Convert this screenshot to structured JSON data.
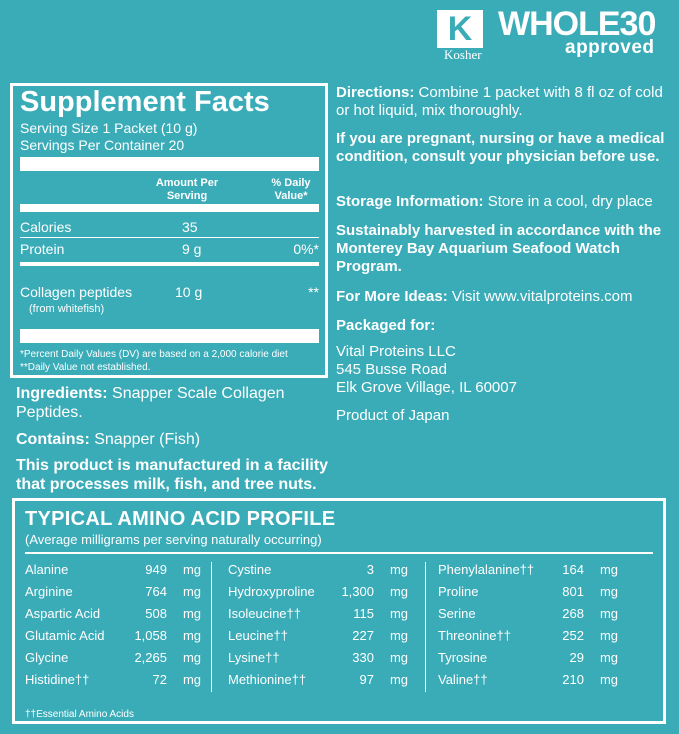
{
  "logos": {
    "kosher_letter": "K",
    "kosher_label": "Kosher",
    "whole30": "WHOLE30",
    "approved": "approved"
  },
  "facts": {
    "title": "Supplement Facts",
    "serving_size": "Serving Size 1 Packet (10 g)",
    "servings_per_container": "Servings Per Container 20",
    "header_amount": "Amount Per Serving",
    "header_dv": "% Daily Value*",
    "rows": [
      {
        "name": "Calories",
        "amount": "35",
        "dv": ""
      },
      {
        "name": "Protein",
        "amount": "9 g",
        "dv": "0%*"
      },
      {
        "name": "Collagen peptides",
        "sub": "(from whitefish)",
        "amount": "10 g",
        "dv": "**"
      }
    ],
    "footnote1": "*Percent Daily Values (DV) are based on a 2,000 calorie diet",
    "footnote2": "**Daily Value not established."
  },
  "left": {
    "ingredients_label": "Ingredients:",
    "ingredients_text": "Snapper Scale Collagen Peptides.",
    "contains_label": "Contains:",
    "contains_text": "Snapper (Fish)",
    "facility": "This product is manufactured in a facility that processes milk, fish, and tree nuts."
  },
  "right": {
    "directions_label": "Directions:",
    "directions_text": "Combine 1 packet with 8 fl oz of cold or hot liquid, mix thoroughly.",
    "warning": "If you are pregnant, nursing or have a medical condition, consult your physician before use.",
    "storage_label": "Storage Information:",
    "storage_text": "Store in a cool, dry place",
    "sustain": "Sustainably harvested in accordance with the Monterey Bay Aquarium Seafood Watch Program.",
    "ideas_label": "For More Ideas:",
    "ideas_text": "Visit www.vitalproteins.com",
    "packaged_label": "Packaged for:",
    "company": "Vital Proteins LLC",
    "address1": "545 Busse Road",
    "address2": "Elk Grove Village, IL 60007",
    "origin": "Product of Japan"
  },
  "amino": {
    "title": "TYPICAL AMINO ACID PROFILE",
    "subtitle": "(Average milligrams per serving naturally occurring)",
    "unit": "mg",
    "columns": [
      [
        {
          "name": "Alanine",
          "value": "949"
        },
        {
          "name": "Arginine",
          "value": "764"
        },
        {
          "name": "Aspartic Acid",
          "value": "508"
        },
        {
          "name": "Glutamic Acid",
          "value": "1,058"
        },
        {
          "name": "Glycine",
          "value": "2,265"
        },
        {
          "name": "Histidine††",
          "value": "72"
        }
      ],
      [
        {
          "name": "Cystine",
          "value": "3"
        },
        {
          "name": "Hydroxyproline",
          "value": "1,300"
        },
        {
          "name": "Isoleucine††",
          "value": "115"
        },
        {
          "name": "Leucine††",
          "value": "227"
        },
        {
          "name": "Lysine††",
          "value": "330"
        },
        {
          "name": "Methionine††",
          "value": "97"
        }
      ],
      [
        {
          "name": "Phenylalanine††",
          "value": "164"
        },
        {
          "name": "Proline",
          "value": "801"
        },
        {
          "name": "Serine",
          "value": "268"
        },
        {
          "name": "Threonine††",
          "value": "252"
        },
        {
          "name": "Tyrosine",
          "value": "29"
        },
        {
          "name": "Valine††",
          "value": "210"
        }
      ]
    ],
    "footnote": "††Essential Amino Acids"
  }
}
